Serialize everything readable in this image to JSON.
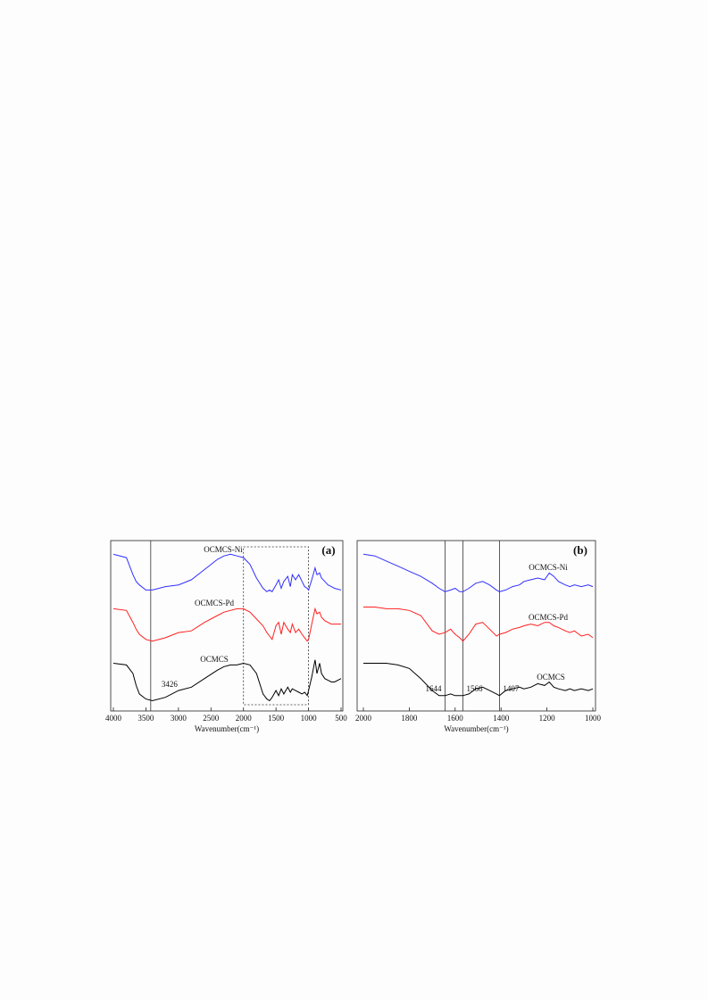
{
  "chart_data": [
    {
      "type": "line",
      "panel_label": "(a)",
      "x_label": "Wavenumber(cm⁻¹)",
      "xlim": [
        4000,
        500
      ],
      "ylim": [
        0,
        100
      ],
      "xticks": [
        4000,
        3500,
        3000,
        2500,
        2000,
        1500,
        1000,
        500
      ],
      "vlines": [
        3426
      ],
      "highlight_x": [
        2000,
        1000
      ],
      "x": [
        4000,
        3800,
        3700,
        3650,
        3600,
        3500,
        3400,
        3200,
        3000,
        2800,
        2600,
        2400,
        2300,
        2200,
        2100,
        2000,
        1900,
        1800,
        1700,
        1640,
        1600,
        1560,
        1500,
        1460,
        1420,
        1380,
        1320,
        1280,
        1250,
        1200,
        1150,
        1100,
        1060,
        1020,
        1000,
        950,
        900,
        870,
        830,
        800,
        750,
        700,
        650,
        600,
        500
      ],
      "series": [
        {
          "name": "OCMCS-Ni",
          "color": "#3030ff",
          "values": [
            92,
            90,
            80,
            76,
            74,
            71,
            71,
            73,
            74,
            77,
            83,
            89,
            91,
            92,
            91,
            90,
            86,
            78,
            72,
            70,
            71,
            70,
            74,
            77,
            72,
            76,
            79,
            73,
            80,
            77,
            80,
            76,
            73,
            72,
            71,
            77,
            84,
            80,
            81,
            78,
            76,
            74,
            73,
            72,
            71
          ]
        },
        {
          "name": "OCMCS-Pd",
          "color": "#ff2020",
          "values": [
            60,
            59,
            52,
            48,
            45,
            42,
            41,
            43,
            46,
            47,
            52,
            56,
            58,
            59,
            60,
            60,
            58,
            54,
            50,
            46,
            44,
            42,
            50,
            52,
            45,
            52,
            48,
            46,
            51,
            46,
            48,
            45,
            43,
            41,
            42,
            51,
            60,
            57,
            58,
            55,
            53,
            52,
            51,
            51,
            51
          ]
        },
        {
          "name": "OCMCS",
          "color": "#000000",
          "values": [
            28,
            27,
            22,
            15,
            10,
            7,
            6,
            8,
            12,
            14,
            19,
            24,
            26,
            27,
            27,
            28,
            27,
            22,
            10,
            7,
            6,
            8,
            12,
            9,
            13,
            10,
            14,
            11,
            13,
            12,
            11,
            10,
            11,
            9,
            12,
            20,
            30,
            22,
            28,
            22,
            19,
            18,
            17,
            17,
            19
          ]
        }
      ]
    },
    {
      "type": "line",
      "panel_label": "(b)",
      "x_label": "Wavenumber(cm⁻¹)",
      "xlim": [
        2000,
        1000
      ],
      "ylim": [
        0,
        100
      ],
      "xticks": [
        2000,
        1800,
        1600,
        1400,
        1200,
        1000
      ],
      "vlines": [
        1644,
        1566,
        1407
      ],
      "x": [
        2000,
        1950,
        1900,
        1850,
        1800,
        1750,
        1700,
        1670,
        1644,
        1620,
        1600,
        1580,
        1566,
        1540,
        1510,
        1480,
        1450,
        1420,
        1407,
        1380,
        1350,
        1320,
        1300,
        1270,
        1240,
        1210,
        1190,
        1170,
        1150,
        1120,
        1100,
        1080,
        1050,
        1020,
        1000
      ],
      "series": [
        {
          "name": "OCMCS-Ni",
          "color": "#3030ff",
          "values": [
            92,
            91,
            88,
            85,
            82,
            79,
            75,
            72,
            70,
            71,
            72,
            70,
            70,
            72,
            75,
            76,
            74,
            71,
            70,
            71,
            73,
            74,
            76,
            77,
            78,
            77,
            81,
            79,
            76,
            74,
            73,
            74,
            73,
            74,
            73
          ]
        },
        {
          "name": "OCMCS-Pd",
          "color": "#ff2020",
          "values": [
            61,
            61,
            60,
            60,
            59,
            56,
            47,
            45,
            46,
            48,
            45,
            43,
            41,
            45,
            51,
            52,
            48,
            44,
            45,
            46,
            48,
            49,
            50,
            51,
            50,
            52,
            52,
            50,
            49,
            47,
            46,
            47,
            44,
            45,
            43
          ]
        },
        {
          "name": "OCMCS",
          "color": "#000000",
          "values": [
            28,
            28,
            28,
            27,
            25,
            19,
            12,
            9,
            9,
            10,
            9,
            9,
            9,
            10,
            13,
            14,
            12,
            10,
            9,
            12,
            13,
            14,
            13,
            14,
            16,
            15,
            17,
            14,
            13,
            12,
            13,
            12,
            13,
            12,
            13
          ]
        }
      ]
    }
  ]
}
